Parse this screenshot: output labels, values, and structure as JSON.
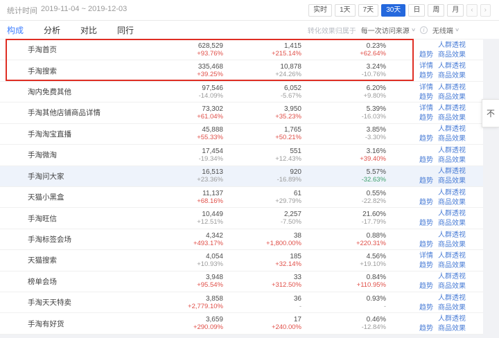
{
  "header": {
    "stat_label": "统计时间",
    "date_range": "2019-11-04 ~ 2019-12-03",
    "range_buttons": [
      {
        "label": "实时",
        "active": false,
        "nav": false
      },
      {
        "label": "1天",
        "active": false,
        "nav": false
      },
      {
        "label": "7天",
        "active": false,
        "nav": false
      },
      {
        "label": "30天",
        "active": true,
        "nav": false
      },
      {
        "label": "日",
        "active": false,
        "nav": false
      },
      {
        "label": "周",
        "active": false,
        "nav": false
      },
      {
        "label": "月",
        "active": false,
        "nav": false
      },
      {
        "label": "‹",
        "active": false,
        "nav": true
      },
      {
        "label": "›",
        "active": false,
        "nav": true
      }
    ]
  },
  "tabs": [
    {
      "label": "构成",
      "active": true
    },
    {
      "label": "分析",
      "active": false
    },
    {
      "label": "对比",
      "active": false
    },
    {
      "label": "同行",
      "active": false
    }
  ],
  "filters": {
    "conversion_label": "转化效果归属于",
    "attribution_value": "每一次访问来源",
    "caret": "∨",
    "info_glyph": "i",
    "terminal_value": "无线端"
  },
  "floating": {
    "label": "不"
  },
  "table": {
    "rows": [
      {
        "name": "手淘首页",
        "highlighted": false,
        "cells": [
          {
            "v": "628,529",
            "c": "+93.76%",
            "cls": "red"
          },
          {
            "v": "1,415",
            "c": "+215.14%",
            "cls": "red"
          },
          {
            "v": "0.23%",
            "c": "+62.64%",
            "cls": "red"
          }
        ],
        "links_top": [
          "人群透视"
        ],
        "links_bottom": [
          "趋势",
          "商品效果"
        ]
      },
      {
        "name": "手淘搜索",
        "highlighted": false,
        "cells": [
          {
            "v": "335,468",
            "c": "+39.25%",
            "cls": "red"
          },
          {
            "v": "10,878",
            "c": "+24.26%",
            "cls": "grey"
          },
          {
            "v": "3.24%",
            "c": "-10.76%",
            "cls": "grey"
          }
        ],
        "links_top": [
          "详情",
          "人群透视"
        ],
        "links_bottom": [
          "趋势",
          "商品效果"
        ]
      },
      {
        "name": "淘内免费其他",
        "highlighted": false,
        "cells": [
          {
            "v": "97,546",
            "c": "-14.09%",
            "cls": "grey"
          },
          {
            "v": "6,052",
            "c": "-5.67%",
            "cls": "grey"
          },
          {
            "v": "6.20%",
            "c": "+9.80%",
            "cls": "grey"
          }
        ],
        "links_top": [
          "详情",
          "人群透视"
        ],
        "links_bottom": [
          "趋势",
          "商品效果"
        ]
      },
      {
        "name": "手淘其他店铺商品详情",
        "highlighted": false,
        "cells": [
          {
            "v": "73,302",
            "c": "+61.04%",
            "cls": "red"
          },
          {
            "v": "3,950",
            "c": "+35.23%",
            "cls": "red"
          },
          {
            "v": "5.39%",
            "c": "-16.03%",
            "cls": "grey"
          }
        ],
        "links_top": [
          "详情",
          "人群透视"
        ],
        "links_bottom": [
          "趋势",
          "商品效果"
        ]
      },
      {
        "name": "手淘淘宝直播",
        "highlighted": false,
        "cells": [
          {
            "v": "45,888",
            "c": "+55.33%",
            "cls": "red"
          },
          {
            "v": "1,765",
            "c": "+50.21%",
            "cls": "red"
          },
          {
            "v": "3.85%",
            "c": "-3.30%",
            "cls": "grey"
          }
        ],
        "links_top": [
          "人群透视"
        ],
        "links_bottom": [
          "趋势",
          "商品效果"
        ]
      },
      {
        "name": "手淘微淘",
        "highlighted": false,
        "cells": [
          {
            "v": "17,454",
            "c": "-19.34%",
            "cls": "grey"
          },
          {
            "v": "551",
            "c": "+12.43%",
            "cls": "grey"
          },
          {
            "v": "3.16%",
            "c": "+39.40%",
            "cls": "red"
          }
        ],
        "links_top": [
          "人群透视"
        ],
        "links_bottom": [
          "趋势",
          "商品效果"
        ]
      },
      {
        "name": "手淘问大家",
        "highlighted": true,
        "cells": [
          {
            "v": "16,513",
            "c": "+23.36%",
            "cls": "grey"
          },
          {
            "v": "920",
            "c": "-16.89%",
            "cls": "grey"
          },
          {
            "v": "5.57%",
            "c": "-32.63%",
            "cls": "green"
          }
        ],
        "links_top": [
          "人群透视"
        ],
        "links_bottom": [
          "趋势",
          "商品效果"
        ]
      },
      {
        "name": "天猫小黑盒",
        "highlighted": false,
        "cells": [
          {
            "v": "11,137",
            "c": "+68.16%",
            "cls": "red"
          },
          {
            "v": "61",
            "c": "+29.79%",
            "cls": "grey"
          },
          {
            "v": "0.55%",
            "c": "-22.82%",
            "cls": "grey"
          }
        ],
        "links_top": [
          "人群透视"
        ],
        "links_bottom": [
          "趋势",
          "商品效果"
        ]
      },
      {
        "name": "手淘旺信",
        "highlighted": false,
        "cells": [
          {
            "v": "10,449",
            "c": "+12.51%",
            "cls": "grey"
          },
          {
            "v": "2,257",
            "c": "-7.50%",
            "cls": "grey"
          },
          {
            "v": "21.60%",
            "c": "-17.79%",
            "cls": "grey"
          }
        ],
        "links_top": [
          "人群透视"
        ],
        "links_bottom": [
          "趋势",
          "商品效果"
        ]
      },
      {
        "name": "手淘标签会场",
        "highlighted": false,
        "cells": [
          {
            "v": "4,342",
            "c": "+493.17%",
            "cls": "red"
          },
          {
            "v": "38",
            "c": "+1,800.00%",
            "cls": "red"
          },
          {
            "v": "0.88%",
            "c": "+220.31%",
            "cls": "red"
          }
        ],
        "links_top": [
          "人群透视"
        ],
        "links_bottom": [
          "趋势",
          "商品效果"
        ]
      },
      {
        "name": "天猫搜索",
        "highlighted": false,
        "cells": [
          {
            "v": "4,054",
            "c": "+10.93%",
            "cls": "grey"
          },
          {
            "v": "185",
            "c": "+32.14%",
            "cls": "red"
          },
          {
            "v": "4.56%",
            "c": "+19.10%",
            "cls": "grey"
          }
        ],
        "links_top": [
          "详情",
          "人群透视"
        ],
        "links_bottom": [
          "趋势",
          "商品效果"
        ]
      },
      {
        "name": "榜单会场",
        "highlighted": false,
        "cells": [
          {
            "v": "3,948",
            "c": "+95.54%",
            "cls": "red"
          },
          {
            "v": "33",
            "c": "+312.50%",
            "cls": "red"
          },
          {
            "v": "0.84%",
            "c": "+110.95%",
            "cls": "red"
          }
        ],
        "links_top": [
          "人群透视"
        ],
        "links_bottom": [
          "趋势",
          "商品效果"
        ]
      },
      {
        "name": "手淘天天特卖",
        "highlighted": false,
        "cells": [
          {
            "v": "3,858",
            "c": "+2,779.10%",
            "cls": "red"
          },
          {
            "v": "36",
            "c": "-",
            "cls": "grey"
          },
          {
            "v": "0.93%",
            "c": "-",
            "cls": "grey"
          }
        ],
        "links_top": [
          "人群透视"
        ],
        "links_bottom": [
          "趋势",
          "商品效果"
        ]
      },
      {
        "name": "手淘有好货",
        "highlighted": false,
        "cells": [
          {
            "v": "3,659",
            "c": "+290.09%",
            "cls": "red"
          },
          {
            "v": "17",
            "c": "+240.00%",
            "cls": "red"
          },
          {
            "v": "0.46%",
            "c": "-12.84%",
            "cls": "grey"
          }
        ],
        "links_top": [
          "人群透视"
        ],
        "links_bottom": [
          "趋势",
          "商品效果"
        ]
      }
    ]
  },
  "colors": {
    "accent": "#3d7eff",
    "button_active_bg": "#2468dd",
    "link": "#4a7dd6",
    "up": "#e04f48",
    "down": "#3fa26f",
    "neutral": "#9b9b9b",
    "annotation_red": "#df2d23",
    "highlight_row_bg": "#eef3fb",
    "page_band": "#f1f2f5",
    "value_text": "#4d4d4d",
    "name_text": "#404040"
  }
}
